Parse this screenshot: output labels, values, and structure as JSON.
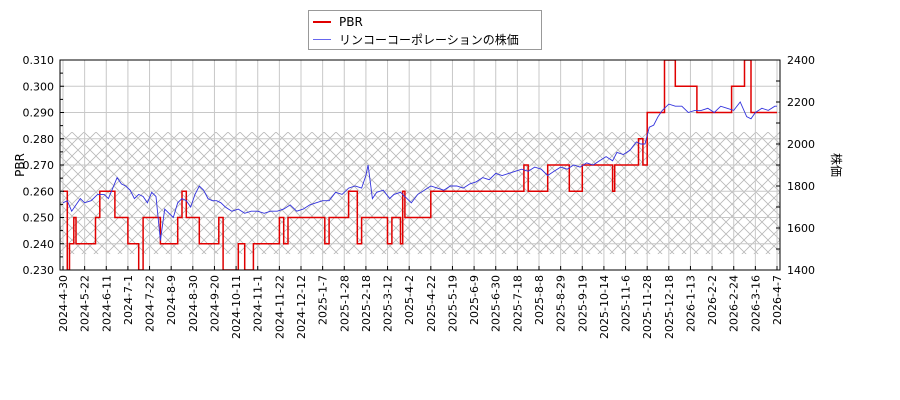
{
  "chart_data": {
    "type": "line",
    "title": "",
    "legend": {
      "position": "top-center",
      "entries": [
        {
          "label": "PBR",
          "color": "#e00000"
        },
        {
          "label": "リンコーコーポレーションの株価",
          "color": "#3333dd"
        }
      ]
    },
    "y_left": {
      "label": "PBR",
      "range": [
        0.23,
        0.31
      ],
      "ticks": [
        "0.230",
        "0.240",
        "0.250",
        "0.260",
        "0.270",
        "0.280",
        "0.290",
        "0.300",
        "0.310"
      ]
    },
    "y_right": {
      "label": "株価",
      "range": [
        1400,
        2400
      ],
      "ticks": [
        "1400",
        "1600",
        "1800",
        "2000",
        "2200",
        "2400"
      ]
    },
    "x_ticks": [
      "2024-4-30",
      "2024-5-22",
      "2024-6-11",
      "2024-7-1",
      "2024-7-22",
      "2024-8-9",
      "2024-8-30",
      "2024-9-20",
      "2024-10-11",
      "2024-11-1",
      "2024-11-22",
      "2024-12-12",
      "2025-1-7",
      "2025-1-28",
      "2025-2-18",
      "2025-3-12",
      "2025-4-2",
      "2025-4-22",
      "2025-5-19",
      "2025-6-9",
      "2025-6-30",
      "2025-7-18",
      "2025-8-8",
      "2025-8-29",
      "2025-9-19",
      "2025-10-14",
      "2025-11-6",
      "2025-11-28",
      "2025-12-18",
      "2026-1-13",
      "2026-2-2",
      "2026-2-24",
      "2026-3-16",
      "2026-4-7"
    ],
    "hatch_band_price": [
      1476,
      2057
    ],
    "grid": true,
    "series": [
      {
        "name": "PBR",
        "axis": "left",
        "color": "#e00000",
        "step_points": [
          [
            0,
            0.26
          ],
          [
            4,
            0.26
          ],
          [
            4,
            0.23
          ],
          [
            6,
            0.23
          ],
          [
            6,
            0.24
          ],
          [
            10,
            0.24
          ],
          [
            10,
            0.25
          ],
          [
            12,
            0.25
          ],
          [
            12,
            0.24
          ],
          [
            30,
            0.24
          ],
          [
            30,
            0.25
          ],
          [
            34,
            0.25
          ],
          [
            34,
            0.26
          ],
          [
            48,
            0.26
          ],
          [
            48,
            0.25
          ],
          [
            60,
            0.25
          ],
          [
            60,
            0.24
          ],
          [
            70,
            0.24
          ],
          [
            70,
            0.23
          ],
          [
            74,
            0.23
          ],
          [
            74,
            0.25
          ],
          [
            90,
            0.25
          ],
          [
            90,
            0.24
          ],
          [
            106,
            0.24
          ],
          [
            106,
            0.25
          ],
          [
            110,
            0.25
          ],
          [
            110,
            0.26
          ],
          [
            114,
            0.26
          ],
          [
            114,
            0.25
          ],
          [
            126,
            0.25
          ],
          [
            126,
            0.24
          ],
          [
            144,
            0.24
          ],
          [
            144,
            0.25
          ],
          [
            148,
            0.25
          ],
          [
            148,
            0.23
          ],
          [
            154,
            0.23
          ],
          [
            154,
            0.23
          ],
          [
            162,
            0.23
          ],
          [
            162,
            0.24
          ],
          [
            168,
            0.24
          ],
          [
            168,
            0.23
          ],
          [
            176,
            0.23
          ],
          [
            176,
            0.24
          ],
          [
            200,
            0.24
          ],
          [
            200,
            0.25
          ],
          [
            204,
            0.25
          ],
          [
            204,
            0.24
          ],
          [
            208,
            0.24
          ],
          [
            208,
            0.25
          ],
          [
            242,
            0.25
          ],
          [
            242,
            0.24
          ],
          [
            246,
            0.24
          ],
          [
            246,
            0.25
          ],
          [
            264,
            0.25
          ],
          [
            264,
            0.26
          ],
          [
            272,
            0.26
          ],
          [
            272,
            0.24
          ],
          [
            276,
            0.24
          ],
          [
            276,
            0.25
          ],
          [
            300,
            0.25
          ],
          [
            300,
            0.24
          ],
          [
            304,
            0.24
          ],
          [
            304,
            0.25
          ],
          [
            312,
            0.25
          ],
          [
            312,
            0.24
          ],
          [
            314,
            0.24
          ],
          [
            314,
            0.26
          ],
          [
            316,
            0.26
          ],
          [
            316,
            0.25
          ],
          [
            340,
            0.25
          ],
          [
            340,
            0.26
          ],
          [
            372,
            0.26
          ],
          [
            372,
            0.26
          ],
          [
            396,
            0.26
          ],
          [
            396,
            0.26
          ],
          [
            426,
            0.26
          ],
          [
            426,
            0.27
          ],
          [
            430,
            0.27
          ],
          [
            430,
            0.26
          ],
          [
            448,
            0.26
          ],
          [
            448,
            0.27
          ],
          [
            468,
            0.27
          ],
          [
            468,
            0.26
          ],
          [
            480,
            0.26
          ],
          [
            480,
            0.27
          ],
          [
            508,
            0.27
          ],
          [
            508,
            0.26
          ],
          [
            510,
            0.26
          ],
          [
            510,
            0.27
          ],
          [
            532,
            0.27
          ],
          [
            532,
            0.28
          ],
          [
            536,
            0.28
          ],
          [
            536,
            0.27
          ],
          [
            540,
            0.27
          ],
          [
            540,
            0.29
          ],
          [
            556,
            0.29
          ],
          [
            556,
            0.31
          ],
          [
            566,
            0.31
          ],
          [
            566,
            0.3
          ],
          [
            586,
            0.3
          ],
          [
            586,
            0.29
          ],
          [
            618,
            0.29
          ],
          [
            618,
            0.3
          ],
          [
            630,
            0.3
          ],
          [
            630,
            0.31
          ],
          [
            636,
            0.31
          ],
          [
            636,
            0.29
          ],
          [
            660,
            0.29
          ]
        ]
      },
      {
        "name": "リンコーコーポレーションの株価",
        "axis": "right",
        "color": "#3333dd",
        "points": [
          [
            0,
            1720
          ],
          [
            4,
            1730
          ],
          [
            8,
            1680
          ],
          [
            12,
            1710
          ],
          [
            16,
            1740
          ],
          [
            20,
            1720
          ],
          [
            26,
            1730
          ],
          [
            32,
            1760
          ],
          [
            38,
            1760
          ],
          [
            42,
            1740
          ],
          [
            46,
            1790
          ],
          [
            50,
            1840
          ],
          [
            54,
            1810
          ],
          [
            58,
            1800
          ],
          [
            62,
            1780
          ],
          [
            66,
            1740
          ],
          [
            70,
            1760
          ],
          [
            74,
            1750
          ],
          [
            78,
            1720
          ],
          [
            82,
            1770
          ],
          [
            86,
            1750
          ],
          [
            90,
            1540
          ],
          [
            94,
            1690
          ],
          [
            98,
            1670
          ],
          [
            102,
            1650
          ],
          [
            106,
            1720
          ],
          [
            110,
            1740
          ],
          [
            114,
            1730
          ],
          [
            118,
            1700
          ],
          [
            122,
            1760
          ],
          [
            126,
            1800
          ],
          [
            130,
            1780
          ],
          [
            134,
            1740
          ],
          [
            138,
            1730
          ],
          [
            142,
            1730
          ],
          [
            146,
            1720
          ],
          [
            150,
            1700
          ],
          [
            156,
            1680
          ],
          [
            162,
            1690
          ],
          [
            168,
            1670
          ],
          [
            174,
            1680
          ],
          [
            180,
            1680
          ],
          [
            186,
            1670
          ],
          [
            192,
            1680
          ],
          [
            198,
            1680
          ],
          [
            204,
            1690
          ],
          [
            210,
            1710
          ],
          [
            216,
            1680
          ],
          [
            222,
            1690
          ],
          [
            228,
            1710
          ],
          [
            234,
            1720
          ],
          [
            240,
            1730
          ],
          [
            246,
            1730
          ],
          [
            252,
            1770
          ],
          [
            258,
            1760
          ],
          [
            264,
            1790
          ],
          [
            270,
            1800
          ],
          [
            276,
            1790
          ],
          [
            280,
            1850
          ],
          [
            282,
            1900
          ],
          [
            286,
            1740
          ],
          [
            290,
            1770
          ],
          [
            296,
            1780
          ],
          [
            302,
            1740
          ],
          [
            306,
            1760
          ],
          [
            312,
            1770
          ],
          [
            318,
            1740
          ],
          [
            322,
            1720
          ],
          [
            328,
            1760
          ],
          [
            334,
            1780
          ],
          [
            340,
            1800
          ],
          [
            346,
            1790
          ],
          [
            352,
            1780
          ],
          [
            358,
            1800
          ],
          [
            364,
            1800
          ],
          [
            370,
            1790
          ],
          [
            376,
            1810
          ],
          [
            382,
            1820
          ],
          [
            388,
            1840
          ],
          [
            394,
            1830
          ],
          [
            400,
            1860
          ],
          [
            406,
            1850
          ],
          [
            412,
            1860
          ],
          [
            418,
            1870
          ],
          [
            424,
            1880
          ],
          [
            430,
            1870
          ],
          [
            436,
            1890
          ],
          [
            442,
            1880
          ],
          [
            448,
            1850
          ],
          [
            454,
            1870
          ],
          [
            460,
            1890
          ],
          [
            466,
            1880
          ],
          [
            472,
            1900
          ],
          [
            478,
            1890
          ],
          [
            484,
            1910
          ],
          [
            490,
            1900
          ],
          [
            496,
            1920
          ],
          [
            502,
            1940
          ],
          [
            508,
            1920
          ],
          [
            512,
            1960
          ],
          [
            518,
            1950
          ],
          [
            524,
            1970
          ],
          [
            530,
            2010
          ],
          [
            534,
            2000
          ],
          [
            538,
            2000
          ],
          [
            542,
            2080
          ],
          [
            546,
            2090
          ],
          [
            550,
            2130
          ],
          [
            554,
            2160
          ],
          [
            560,
            2190
          ],
          [
            566,
            2180
          ],
          [
            572,
            2180
          ],
          [
            578,
            2150
          ],
          [
            584,
            2160
          ],
          [
            590,
            2160
          ],
          [
            596,
            2170
          ],
          [
            602,
            2150
          ],
          [
            608,
            2180
          ],
          [
            614,
            2170
          ],
          [
            620,
            2160
          ],
          [
            626,
            2200
          ],
          [
            632,
            2130
          ],
          [
            636,
            2120
          ],
          [
            640,
            2150
          ],
          [
            646,
            2170
          ],
          [
            652,
            2160
          ],
          [
            658,
            2180
          ],
          [
            660,
            2180
          ]
        ]
      }
    ]
  }
}
